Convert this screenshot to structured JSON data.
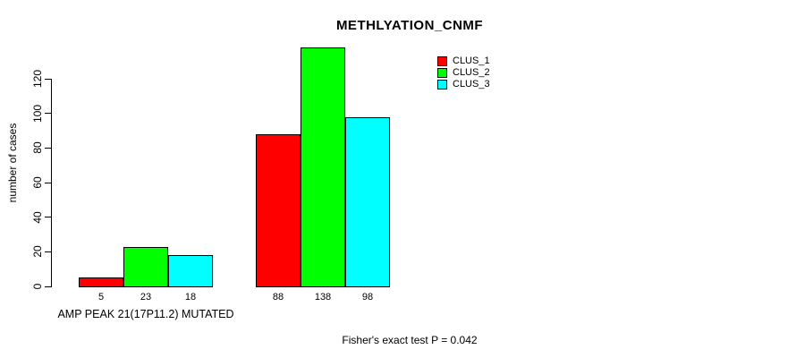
{
  "chart_data": {
    "type": "bar",
    "title": "METHLYATION_CNMF",
    "ylabel": "number of cases",
    "xlabel": "",
    "categories": [
      "AMP PEAK 21(17P11.2) MUTATED",
      ""
    ],
    "series": [
      {
        "name": "CLUS_1",
        "color": "#FF0000",
        "values": [
          5,
          88
        ]
      },
      {
        "name": "CLUS_2",
        "color": "#00FF00",
        "values": [
          23,
          138
        ]
      },
      {
        "name": "CLUS_3",
        "color": "#00FFFF",
        "values": [
          18,
          98
        ]
      }
    ],
    "bar_value_labels": [
      [
        5,
        23,
        18
      ],
      [
        88,
        138,
        98
      ]
    ],
    "yticks": [
      0,
      20,
      40,
      60,
      80,
      100,
      120
    ],
    "ylim": [
      0,
      120
    ],
    "grid": false,
    "legend_position": "top-right",
    "annotation": "Fisher's exact test P = 0.042",
    "bar_border_color": "#000000",
    "background_color": "#FFFFFF"
  }
}
